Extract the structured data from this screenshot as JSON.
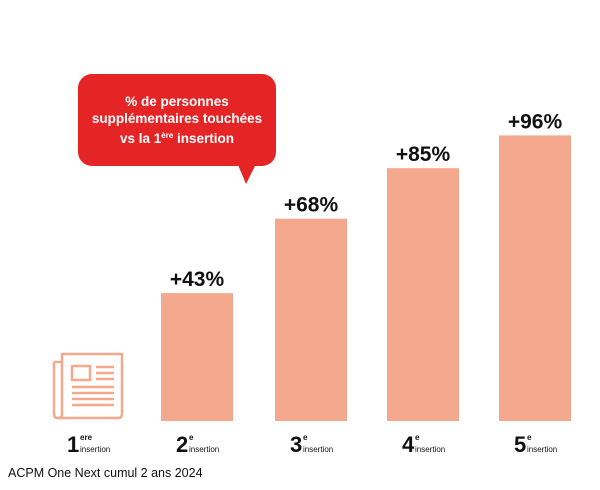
{
  "chart_data": {
    "type": "bar",
    "title": "",
    "xlabel": "",
    "ylabel": "",
    "ylim": [
      0,
      96
    ],
    "grid": false,
    "bar_color": "#f4a98e",
    "categories": [
      {
        "num": "1",
        "sup": "ere",
        "sub": "insertion"
      },
      {
        "num": "2",
        "sup": "e",
        "sub": "insertion"
      },
      {
        "num": "3",
        "sup": "e",
        "sub": "insertion"
      },
      {
        "num": "4",
        "sup": "e",
        "sub": "insertion"
      },
      {
        "num": "5",
        "sup": "e",
        "sub": "insertion"
      }
    ],
    "values": [
      null,
      43,
      68,
      85,
      96
    ],
    "value_labels": [
      "",
      "+43%",
      "+68%",
      "+85%",
      "+96%"
    ],
    "first_category_icon": "newspaper-icon"
  },
  "callout": {
    "line1": "% de personnes",
    "line2": "supplémentaires touchées",
    "line3_pre": "vs la 1",
    "line3_sup": "ère",
    "line3_post": " insertion",
    "color": "#e52426"
  },
  "source": "ACPM One Next cumul 2 ans 2024"
}
